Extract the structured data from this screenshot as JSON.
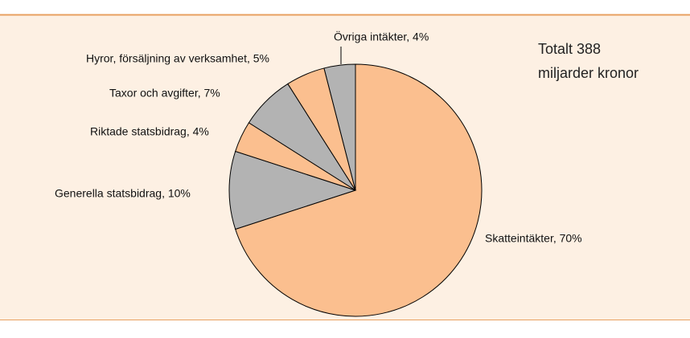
{
  "chart_data": {
    "type": "pie",
    "annotations": [
      "Totalt 388",
      "miljarder kronor"
    ],
    "labels": [
      "Skatteintäkter, 70%",
      "Generella statsbidrag, 10%",
      "Riktade statsbidrag, 4%",
      "Taxor och avgifter, 7%",
      "Hyror, försäljning av verksamhet, 5%",
      "Övriga intäkter, 4%"
    ],
    "values": [
      70,
      10,
      4,
      7,
      5,
      4
    ],
    "colors": [
      "#fbbf8f",
      "#b3b3b3",
      "#fbbf8f",
      "#b3b3b3",
      "#fbbf8f",
      "#b3b3b3"
    ],
    "start_angle": 0,
    "direction": "clockwise"
  }
}
